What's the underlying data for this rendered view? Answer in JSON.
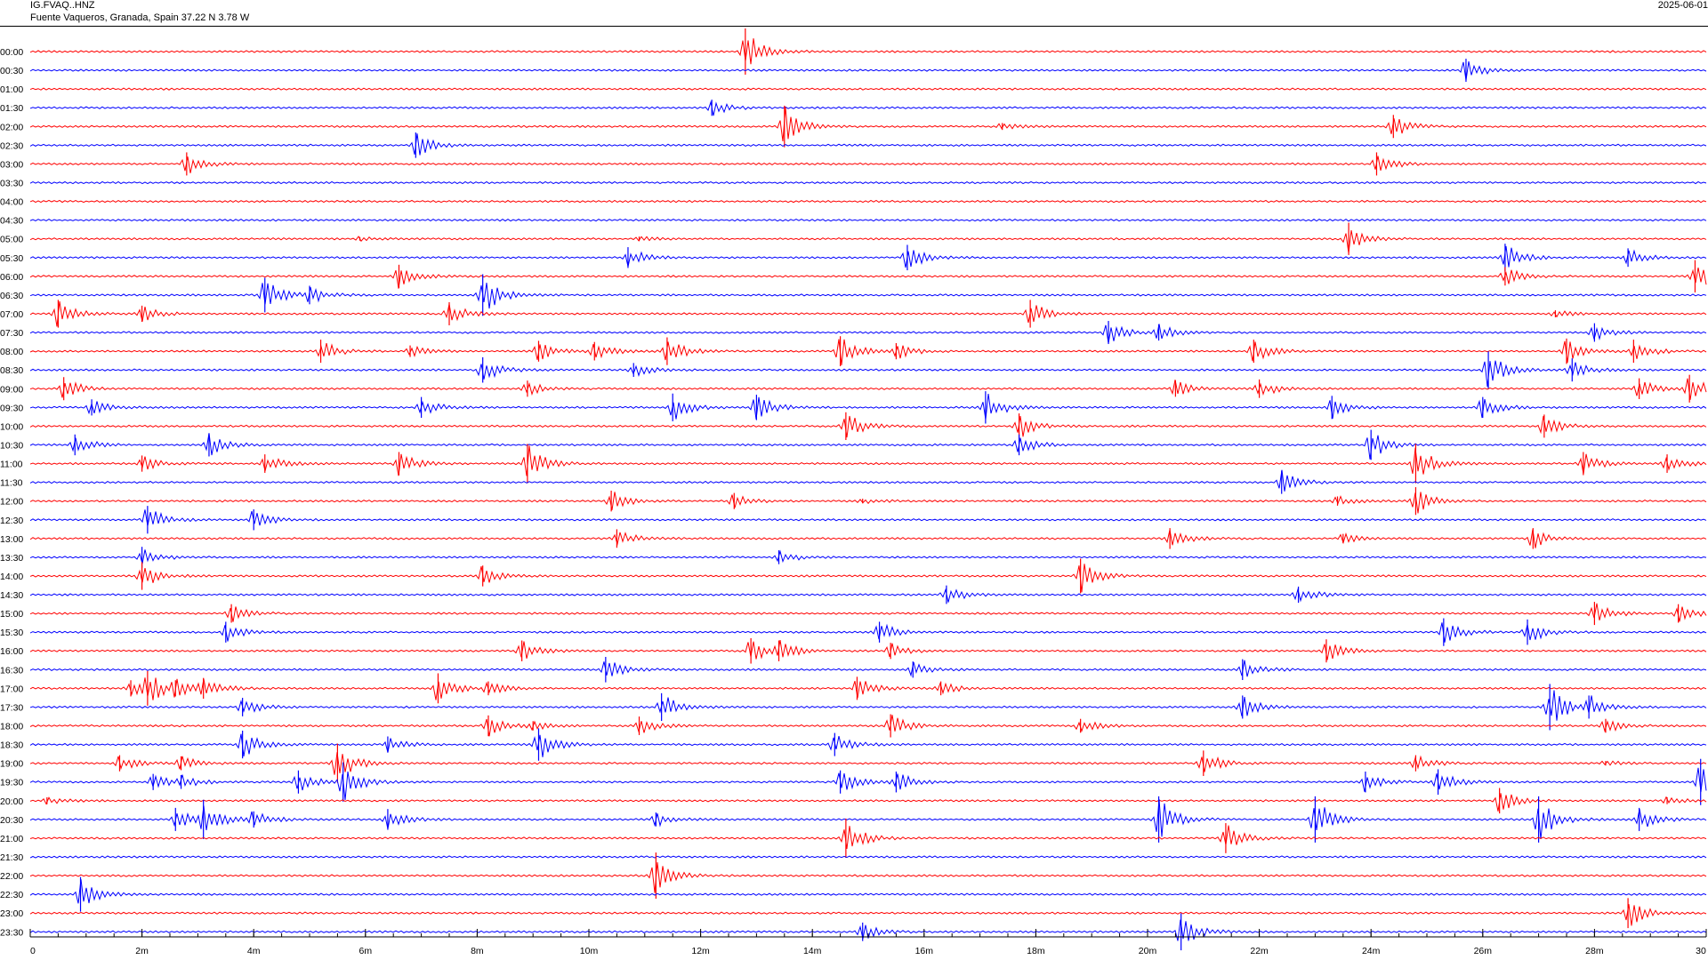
{
  "header": {
    "station_code": "IG.FVAQ..HNZ",
    "station_description": "Fuente Vaqueros, Granada, Spain  37.22 N 3.78 W",
    "date": "2025-06-01"
  },
  "colors": {
    "trace_a": "#ff0000",
    "trace_b": "#0000ff",
    "axis": "#000000",
    "background": "#ffffff"
  },
  "chart_data": {
    "type": "helicorder",
    "xlabel": "",
    "ylabel": "",
    "xlim": [
      0,
      30
    ],
    "x_unit": "minutes",
    "x_ticks": [
      {
        "value": 0,
        "label": "0"
      },
      {
        "value": 2,
        "label": "2m"
      },
      {
        "value": 4,
        "label": "4m"
      },
      {
        "value": 6,
        "label": "6m"
      },
      {
        "value": 8,
        "label": "8m"
      },
      {
        "value": 10,
        "label": "10m"
      },
      {
        "value": 12,
        "label": "12m"
      },
      {
        "value": 14,
        "label": "14m"
      },
      {
        "value": 16,
        "label": "16m"
      },
      {
        "value": 18,
        "label": "18m"
      },
      {
        "value": 20,
        "label": "20m"
      },
      {
        "value": 22,
        "label": "22m"
      },
      {
        "value": 24,
        "label": "24m"
      },
      {
        "value": 26,
        "label": "26m"
      },
      {
        "value": 28,
        "label": "28m"
      },
      {
        "value": 30,
        "label": "30"
      }
    ],
    "rows": [
      {
        "label": "00:00",
        "events": [
          [
            12.8,
            1.0
          ]
        ]
      },
      {
        "label": "00:30",
        "events": [
          [
            25.7,
            0.5
          ]
        ]
      },
      {
        "label": "01:00",
        "events": []
      },
      {
        "label": "01:30",
        "events": [
          [
            12.2,
            0.35
          ]
        ]
      },
      {
        "label": "02:00",
        "events": [
          [
            13.5,
            0.9
          ],
          [
            17.4,
            0.15
          ],
          [
            24.4,
            0.5
          ]
        ]
      },
      {
        "label": "02:30",
        "events": [
          [
            6.9,
            0.55
          ]
        ]
      },
      {
        "label": "03:00",
        "events": [
          [
            2.8,
            0.5
          ],
          [
            24.1,
            0.5
          ]
        ]
      },
      {
        "label": "03:30",
        "events": []
      },
      {
        "label": "04:00",
        "events": []
      },
      {
        "label": "04:30",
        "events": []
      },
      {
        "label": "05:00",
        "events": [
          [
            23.6,
            0.7
          ],
          [
            5.9,
            0.08
          ],
          [
            10.9,
            0.1
          ]
        ]
      },
      {
        "label": "05:30",
        "events": [
          [
            10.7,
            0.45
          ],
          [
            15.7,
            0.55
          ],
          [
            26.4,
            0.6
          ],
          [
            28.6,
            0.4
          ]
        ]
      },
      {
        "label": "06:00",
        "events": [
          [
            6.6,
            0.5
          ],
          [
            26.4,
            0.4
          ],
          [
            29.8,
            0.7
          ]
        ]
      },
      {
        "label": "06:30",
        "events": [
          [
            4.2,
            0.75
          ],
          [
            5.0,
            0.4
          ],
          [
            8.1,
            0.9
          ]
        ]
      },
      {
        "label": "07:00",
        "events": [
          [
            0.5,
            0.6
          ],
          [
            2.0,
            0.35
          ],
          [
            7.5,
            0.5
          ],
          [
            17.9,
            0.6
          ],
          [
            27.3,
            0.15
          ]
        ]
      },
      {
        "label": "07:30",
        "events": [
          [
            19.3,
            0.5
          ],
          [
            20.2,
            0.35
          ],
          [
            28.0,
            0.4
          ]
        ]
      },
      {
        "label": "08:00",
        "events": [
          [
            5.2,
            0.5
          ],
          [
            6.8,
            0.25
          ],
          [
            9.1,
            0.45
          ],
          [
            10.1,
            0.4
          ],
          [
            11.4,
            0.6
          ],
          [
            14.5,
            0.65
          ],
          [
            15.5,
            0.35
          ],
          [
            21.9,
            0.5
          ],
          [
            27.5,
            0.55
          ],
          [
            28.7,
            0.5
          ]
        ]
      },
      {
        "label": "08:30",
        "events": [
          [
            8.1,
            0.55
          ],
          [
            10.8,
            0.3
          ],
          [
            26.1,
            0.8
          ],
          [
            27.6,
            0.5
          ]
        ]
      },
      {
        "label": "09:00",
        "events": [
          [
            0.6,
            0.5
          ],
          [
            8.9,
            0.35
          ],
          [
            20.5,
            0.35
          ],
          [
            22.0,
            0.4
          ],
          [
            29.7,
            0.6
          ],
          [
            28.8,
            0.45
          ]
        ]
      },
      {
        "label": "09:30",
        "events": [
          [
            1.1,
            0.35
          ],
          [
            7.0,
            0.45
          ],
          [
            11.5,
            0.6
          ],
          [
            13.0,
            0.55
          ],
          [
            17.1,
            0.7
          ],
          [
            23.3,
            0.5
          ],
          [
            26.0,
            0.45
          ]
        ]
      },
      {
        "label": "10:00",
        "events": [
          [
            14.6,
            0.6
          ],
          [
            17.7,
            0.55
          ],
          [
            27.1,
            0.5
          ]
        ]
      },
      {
        "label": "10:30",
        "events": [
          [
            0.8,
            0.45
          ],
          [
            3.2,
            0.5
          ],
          [
            17.7,
            0.45
          ],
          [
            24.0,
            0.65
          ]
        ]
      },
      {
        "label": "11:00",
        "events": [
          [
            2.0,
            0.35
          ],
          [
            4.2,
            0.4
          ],
          [
            6.6,
            0.5
          ],
          [
            8.9,
            0.85
          ],
          [
            24.8,
            0.85
          ],
          [
            27.8,
            0.5
          ],
          [
            29.3,
            0.4
          ]
        ]
      },
      {
        "label": "11:30",
        "events": [
          [
            22.4,
            0.5
          ]
        ]
      },
      {
        "label": "12:00",
        "events": [
          [
            10.4,
            0.45
          ],
          [
            12.6,
            0.35
          ],
          [
            14.9,
            0.1
          ],
          [
            24.8,
            0.6
          ],
          [
            23.4,
            0.2
          ]
        ]
      },
      {
        "label": "12:30",
        "events": [
          [
            2.1,
            0.6
          ],
          [
            4.0,
            0.45
          ]
        ]
      },
      {
        "label": "13:00",
        "events": [
          [
            10.5,
            0.4
          ],
          [
            20.4,
            0.45
          ],
          [
            23.5,
            0.2
          ],
          [
            26.9,
            0.45
          ]
        ]
      },
      {
        "label": "13:30",
        "events": [
          [
            2.0,
            0.45
          ],
          [
            13.4,
            0.3
          ]
        ]
      },
      {
        "label": "14:00",
        "events": [
          [
            2.0,
            0.6
          ],
          [
            8.1,
            0.45
          ],
          [
            18.8,
            0.75
          ]
        ]
      },
      {
        "label": "14:30",
        "events": [
          [
            16.4,
            0.4
          ],
          [
            22.7,
            0.35
          ]
        ]
      },
      {
        "label": "15:00",
        "events": [
          [
            3.6,
            0.4
          ],
          [
            28.0,
            0.5
          ],
          [
            29.5,
            0.4
          ]
        ]
      },
      {
        "label": "15:30",
        "events": [
          [
            3.5,
            0.45
          ],
          [
            15.2,
            0.45
          ],
          [
            25.3,
            0.6
          ],
          [
            26.8,
            0.55
          ]
        ]
      },
      {
        "label": "16:00",
        "events": [
          [
            8.8,
            0.45
          ],
          [
            12.9,
            0.55
          ],
          [
            13.4,
            0.45
          ],
          [
            15.4,
            0.35
          ],
          [
            23.2,
            0.5
          ]
        ]
      },
      {
        "label": "16:30",
        "events": [
          [
            10.3,
            0.55
          ],
          [
            15.8,
            0.35
          ],
          [
            21.7,
            0.45
          ]
        ]
      },
      {
        "label": "17:00",
        "events": [
          [
            1.8,
            0.35
          ],
          [
            2.1,
            0.75
          ],
          [
            2.6,
            0.35
          ],
          [
            3.1,
            0.45
          ],
          [
            7.3,
            0.65
          ],
          [
            8.2,
            0.3
          ],
          [
            14.8,
            0.5
          ],
          [
            16.3,
            0.3
          ]
        ]
      },
      {
        "label": "17:30",
        "events": [
          [
            3.8,
            0.4
          ],
          [
            11.3,
            0.6
          ],
          [
            21.7,
            0.5
          ],
          [
            27.2,
            1.0
          ],
          [
            27.9,
            0.5
          ]
        ]
      },
      {
        "label": "18:00",
        "events": [
          [
            8.2,
            0.45
          ],
          [
            9.0,
            0.2
          ],
          [
            10.9,
            0.4
          ],
          [
            15.4,
            0.5
          ],
          [
            18.8,
            0.3
          ],
          [
            28.2,
            0.3
          ]
        ]
      },
      {
        "label": "18:30",
        "events": [
          [
            3.8,
            0.6
          ],
          [
            6.4,
            0.35
          ],
          [
            9.1,
            0.7
          ],
          [
            14.4,
            0.5
          ]
        ]
      },
      {
        "label": "19:00",
        "events": [
          [
            1.6,
            0.35
          ],
          [
            2.7,
            0.3
          ],
          [
            5.5,
            0.85
          ],
          [
            21.0,
            0.55
          ],
          [
            24.8,
            0.35
          ],
          [
            28.2,
            0.1
          ]
        ]
      },
      {
        "label": "19:30",
        "events": [
          [
            2.2,
            0.35
          ],
          [
            2.7,
            0.3
          ],
          [
            4.8,
            0.5
          ],
          [
            5.6,
            0.85
          ],
          [
            14.5,
            0.5
          ],
          [
            15.5,
            0.45
          ],
          [
            23.9,
            0.45
          ],
          [
            25.2,
            0.55
          ],
          [
            29.9,
            1.0
          ]
        ]
      },
      {
        "label": "20:00",
        "events": [
          [
            0.3,
            0.15
          ],
          [
            26.3,
            0.55
          ],
          [
            29.3,
            0.15
          ]
        ]
      },
      {
        "label": "20:30",
        "events": [
          [
            2.6,
            0.5
          ],
          [
            3.1,
            0.85
          ],
          [
            4.0,
            0.35
          ],
          [
            6.4,
            0.45
          ],
          [
            11.2,
            0.3
          ],
          [
            20.2,
            1.0
          ],
          [
            23.0,
            1.0
          ],
          [
            27.0,
            1.0
          ],
          [
            28.8,
            0.5
          ]
        ]
      },
      {
        "label": "21:00",
        "events": [
          [
            14.6,
            0.85
          ],
          [
            21.4,
            0.65
          ]
        ]
      },
      {
        "label": "21:30",
        "events": []
      },
      {
        "label": "22:00",
        "events": [
          [
            11.2,
            1.0
          ]
        ]
      },
      {
        "label": "22:30",
        "events": [
          [
            0.9,
            0.75
          ]
        ]
      },
      {
        "label": "23:00",
        "events": [
          [
            28.6,
            0.65
          ]
        ]
      },
      {
        "label": "23:30",
        "events": [
          [
            14.9,
            0.4
          ],
          [
            20.6,
            0.8
          ]
        ]
      }
    ]
  }
}
